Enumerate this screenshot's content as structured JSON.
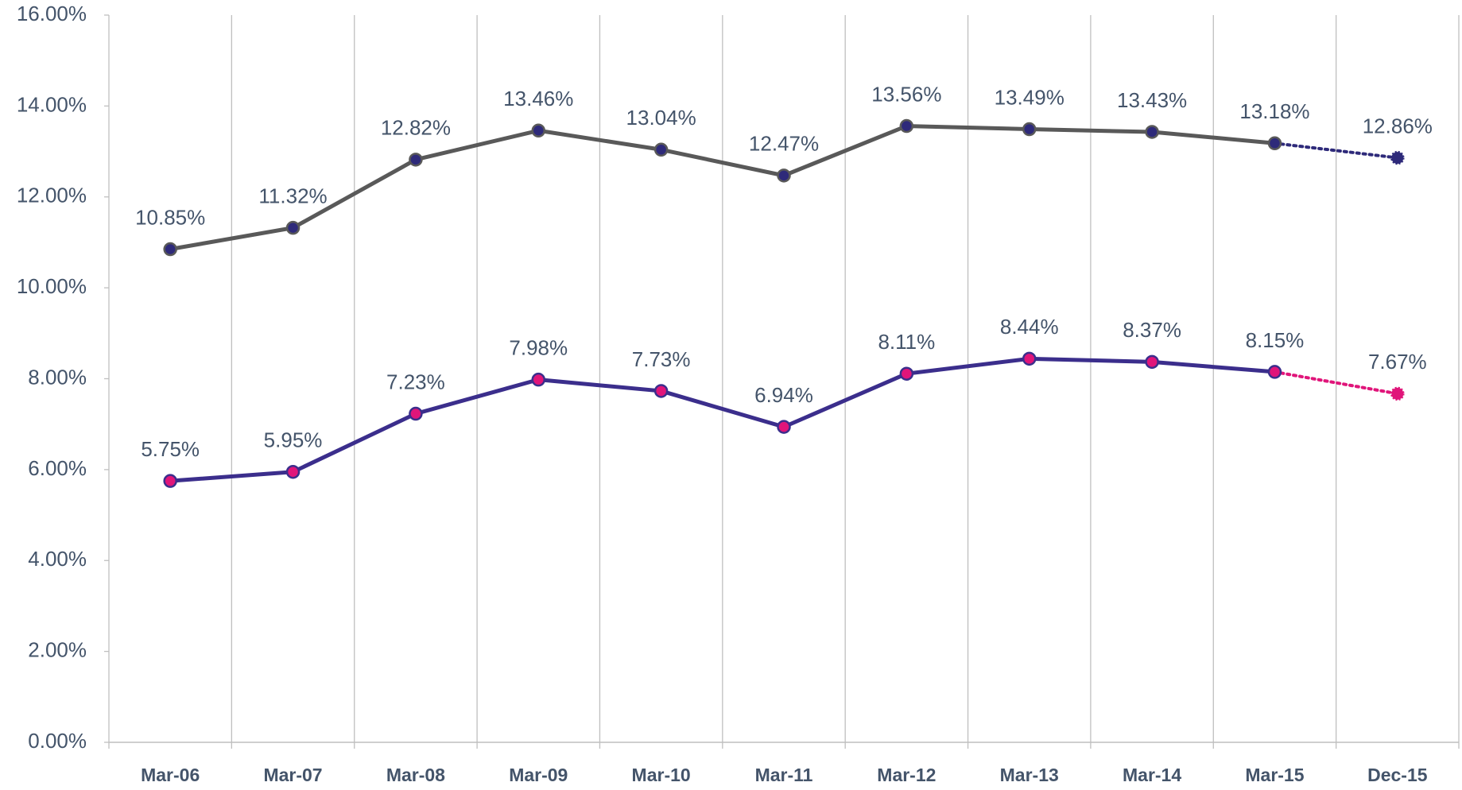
{
  "chart_data": {
    "type": "line",
    "categories": [
      "Mar-06",
      "Mar-07",
      "Mar-08",
      "Mar-09",
      "Mar-10",
      "Mar-11",
      "Mar-12",
      "Mar-13",
      "Mar-14",
      "Mar-15",
      "Dec-15"
    ],
    "series": [
      {
        "color": "#595959",
        "marker_color": "#2e2a7a",
        "values": [
          10.85,
          11.32,
          12.82,
          13.46,
          13.04,
          12.47,
          13.56,
          13.49,
          13.43,
          13.18,
          12.86
        ],
        "value_labels": [
          "10.85%",
          "11.32%",
          "12.82%",
          "13.46%",
          "13.04%",
          "12.47%",
          "13.56%",
          "13.49%",
          "13.43%",
          "13.18%",
          "12.86%"
        ]
      },
      {
        "color": "#3b2e8c",
        "marker_color": "#e0157a",
        "values": [
          5.75,
          5.95,
          7.23,
          7.98,
          7.73,
          6.94,
          8.11,
          8.44,
          8.37,
          8.15,
          7.67
        ],
        "value_labels": [
          "5.75%",
          "5.95%",
          "7.23%",
          "7.98%",
          "7.73%",
          "6.94%",
          "8.11%",
          "8.44%",
          "8.37%",
          "8.15%",
          "7.67%"
        ]
      }
    ],
    "ylim": [
      0,
      16
    ],
    "yticks": [
      {
        "value": 0,
        "label": "0.00%"
      },
      {
        "value": 2,
        "label": "2.00%"
      },
      {
        "value": 4,
        "label": "4.00%"
      },
      {
        "value": 6,
        "label": "6.00%"
      },
      {
        "value": 8,
        "label": "8.00%"
      },
      {
        "value": 10,
        "label": "10.00%"
      },
      {
        "value": 12,
        "label": "12.00%"
      },
      {
        "value": 14,
        "label": "14.00%"
      },
      {
        "value": 16,
        "label": "16.00%"
      }
    ]
  }
}
